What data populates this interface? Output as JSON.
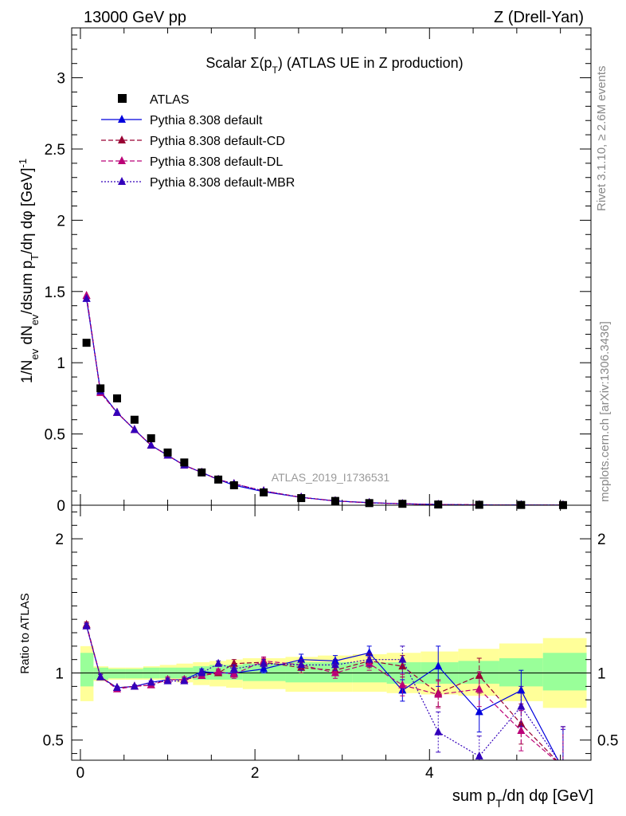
{
  "header": {
    "left": "13000 GeV pp",
    "right": "Z (Drell-Yan)"
  },
  "side_text": {
    "rivet": "Rivet 3.1.10, ≥ 2.6M events",
    "mcplots": "mcplots.cern.ch [arXiv:1306.3436]"
  },
  "colors": {
    "atlas": "#000000",
    "default": "#0000dd",
    "default_cd": "#990033",
    "default_dl": "#bb0077",
    "default_mbr": "#3300bb",
    "band_inner": "#99ff99",
    "band_outer": "#ffff99"
  },
  "chart_data": [
    {
      "type": "scatter",
      "title": "Scalar Σ(p_T) (ATLAS UE in Z production)",
      "ylabel": "1/N_ev dN_ev/dsum p_T/dη dφ [GeV]^-1",
      "watermark": "ATLAS_2019_I1736531",
      "xlim": [
        -0.1,
        5.85
      ],
      "ylim": [
        0,
        3.35
      ],
      "yticks": [
        0,
        0.5,
        1,
        1.5,
        2,
        2.5,
        3
      ],
      "x": [
        0.07,
        0.23,
        0.42,
        0.62,
        0.81,
        1.0,
        1.19,
        1.39,
        1.58,
        1.76,
        2.1,
        2.53,
        2.92,
        3.31,
        3.69,
        4.1,
        4.57,
        5.05,
        5.53
      ],
      "series": [
        {
          "name": "ATLAS",
          "style": "marker",
          "values": [
            1.14,
            0.82,
            0.75,
            0.6,
            0.47,
            0.37,
            0.3,
            0.23,
            0.18,
            0.14,
            0.09,
            0.05,
            0.03,
            0.015,
            0.01,
            0.005,
            0.003,
            0.002,
            0.001
          ]
        },
        {
          "name": "Pythia 8.308 default",
          "style": "solid",
          "values": [
            1.45,
            0.8,
            0.65,
            0.53,
            0.42,
            0.35,
            0.28,
            0.23,
            0.18,
            0.14,
            0.095,
            0.055,
            0.03,
            0.018,
            0.01,
            0.005,
            0.002,
            0.002,
            0.001
          ]
        },
        {
          "name": "Pythia 8.308 default-CD",
          "style": "dashed",
          "values": [
            1.47,
            0.79,
            0.65,
            0.53,
            0.42,
            0.35,
            0.28,
            0.23,
            0.18,
            0.15,
            0.1,
            0.055,
            0.03,
            0.017,
            0.01,
            0.005,
            0.003,
            0.001,
            0.001
          ]
        },
        {
          "name": "Pythia 8.308 default-DL",
          "style": "dashed",
          "values": [
            1.47,
            0.79,
            0.65,
            0.53,
            0.42,
            0.35,
            0.28,
            0.23,
            0.18,
            0.15,
            0.1,
            0.055,
            0.03,
            0.017,
            0.01,
            0.005,
            0.003,
            0.001,
            0.001
          ]
        },
        {
          "name": "Pythia 8.308 default-MBR",
          "style": "dotted",
          "values": [
            1.45,
            0.8,
            0.65,
            0.53,
            0.42,
            0.35,
            0.28,
            0.23,
            0.18,
            0.15,
            0.1,
            0.055,
            0.03,
            0.017,
            0.01,
            0.005,
            0.002,
            0.002,
            0.001
          ]
        }
      ]
    },
    {
      "type": "line",
      "ylabel": "Ratio to ATLAS",
      "xlabel": "sum p_T/dη dφ [GeV]",
      "xlim": [
        -0.1,
        5.85
      ],
      "ylim": [
        0.35,
        2.25
      ],
      "xticks": [
        0,
        2,
        4
      ],
      "yticks": [
        0.5,
        1,
        2
      ],
      "x": [
        0.07,
        0.23,
        0.42,
        0.62,
        0.81,
        1.0,
        1.19,
        1.39,
        1.58,
        1.76,
        2.1,
        2.53,
        2.92,
        3.31,
        3.69,
        4.1,
        4.57,
        5.05,
        5.53
      ],
      "band_edges": [
        0.0,
        0.15,
        0.32,
        0.52,
        0.72,
        0.91,
        1.1,
        1.29,
        1.48,
        1.67,
        1.86,
        2.35,
        2.72,
        3.12,
        3.51,
        3.9,
        4.33,
        4.8,
        5.3,
        5.8
      ],
      "band_inner": [
        [
          0.9,
          1.15
        ],
        [
          0.95,
          1.04
        ],
        [
          0.96,
          1.03
        ],
        [
          0.96,
          1.03
        ],
        [
          0.96,
          1.04
        ],
        [
          0.96,
          1.04
        ],
        [
          0.96,
          1.04
        ],
        [
          0.95,
          1.05
        ],
        [
          0.95,
          1.06
        ],
        [
          0.95,
          1.06
        ],
        [
          0.94,
          1.07
        ],
        [
          0.93,
          1.08
        ],
        [
          0.93,
          1.08
        ],
        [
          0.93,
          1.08
        ],
        [
          0.92,
          1.08
        ],
        [
          0.92,
          1.08
        ],
        [
          0.92,
          1.09
        ],
        [
          0.9,
          1.11
        ],
        [
          0.87,
          1.15
        ]
      ],
      "band_outer": [
        [
          0.79,
          1.2
        ],
        [
          0.94,
          1.05
        ],
        [
          0.95,
          1.04
        ],
        [
          0.95,
          1.04
        ],
        [
          0.95,
          1.05
        ],
        [
          0.95,
          1.06
        ],
        [
          0.93,
          1.07
        ],
        [
          0.91,
          1.08
        ],
        [
          0.9,
          1.09
        ],
        [
          0.89,
          1.1
        ],
        [
          0.88,
          1.11
        ],
        [
          0.86,
          1.12
        ],
        [
          0.86,
          1.13
        ],
        [
          0.86,
          1.14
        ],
        [
          0.85,
          1.15
        ],
        [
          0.84,
          1.16
        ],
        [
          0.83,
          1.18
        ],
        [
          0.79,
          1.22
        ],
        [
          0.74,
          1.26
        ]
      ],
      "series": [
        {
          "name": "Pythia 8.308 default",
          "style": "solid",
          "values": [
            1.35,
            0.97,
            0.89,
            0.9,
            0.93,
            0.95,
            0.95,
            1.01,
            1.0,
            1.0,
            1.03,
            1.1,
            1.09,
            1.15,
            0.87,
            1.05,
            0.71,
            0.87,
            0.28
          ],
          "errors": [
            0.02,
            0.02,
            0.01,
            0.01,
            0.01,
            0.02,
            0.02,
            0.02,
            0.02,
            0.02,
            0.03,
            0.04,
            0.04,
            0.05,
            0.08,
            0.15,
            0.15,
            0.15,
            0.3
          ]
        },
        {
          "name": "Pythia 8.308 default-CD",
          "style": "dashed",
          "values": [
            1.36,
            0.97,
            0.89,
            0.9,
            0.91,
            0.95,
            0.95,
            0.98,
            1.0,
            1.07,
            1.08,
            1.04,
            1.02,
            1.09,
            1.05,
            0.85,
            0.98,
            0.62,
            0.3
          ],
          "errors": [
            0.02,
            0.02,
            0.01,
            0.01,
            0.01,
            0.02,
            0.02,
            0.02,
            0.02,
            0.03,
            0.03,
            0.04,
            0.04,
            0.05,
            0.08,
            0.1,
            0.13,
            0.15,
            0.3
          ]
        },
        {
          "name": "Pythia 8.308 default-DL",
          "style": "dashed",
          "values": [
            1.35,
            0.97,
            0.88,
            0.9,
            0.91,
            0.95,
            0.95,
            0.98,
            1.01,
            0.99,
            1.09,
            1.06,
            1.0,
            1.07,
            0.91,
            0.84,
            0.88,
            0.57,
            0.3
          ],
          "errors": [
            0.02,
            0.02,
            0.01,
            0.01,
            0.01,
            0.02,
            0.02,
            0.02,
            0.02,
            0.03,
            0.03,
            0.04,
            0.04,
            0.05,
            0.08,
            0.1,
            0.13,
            0.15,
            0.3
          ]
        },
        {
          "name": "Pythia 8.308 default-MBR",
          "style": "dotted",
          "values": [
            1.35,
            0.97,
            0.89,
            0.9,
            0.93,
            0.94,
            0.94,
            1.0,
            1.07,
            1.03,
            1.07,
            1.06,
            1.06,
            1.1,
            1.1,
            0.56,
            0.38,
            0.75,
            0.3
          ],
          "errors": [
            0.02,
            0.02,
            0.01,
            0.01,
            0.01,
            0.02,
            0.02,
            0.02,
            0.02,
            0.03,
            0.03,
            0.04,
            0.04,
            0.05,
            0.1,
            0.15,
            0.15,
            0.15,
            0.3
          ]
        }
      ]
    }
  ]
}
